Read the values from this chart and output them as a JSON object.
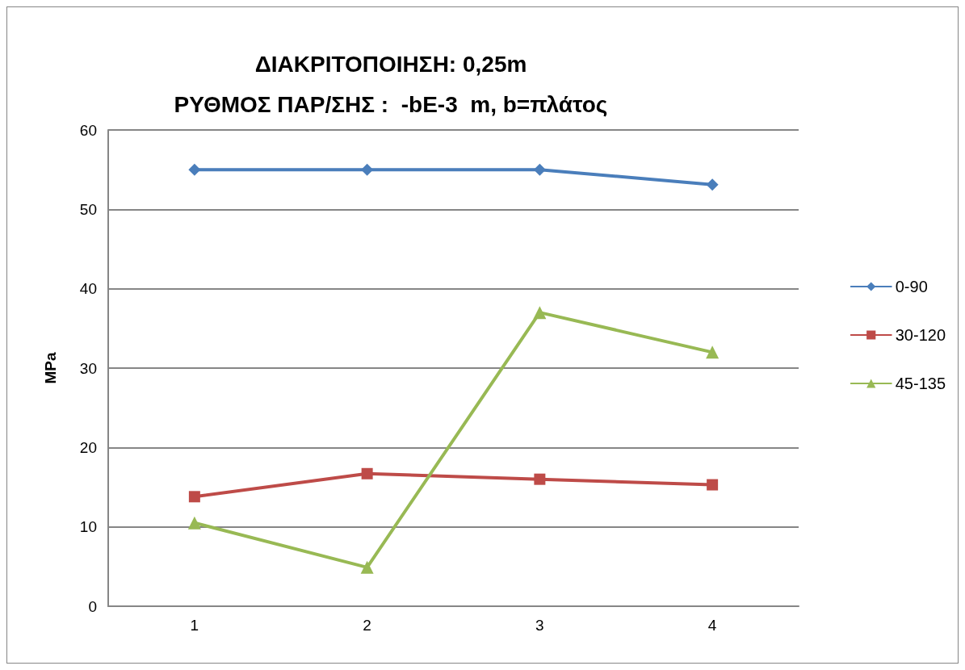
{
  "chart_data": {
    "type": "line",
    "title": "ΔΙΑΚΡΙΤΟΠΟΙΗΣΗ: 0,25m\nΡΥΘΜΟΣ ΠΑΡ/ΣΗΣ :  -bE-3  m, b=πλάτος",
    "ylabel": "MPa",
    "categories": [
      "1",
      "2",
      "3",
      "4"
    ],
    "series": [
      {
        "name": "0-90",
        "color": "#4a7ebb",
        "marker": "diamond",
        "values": [
          55,
          55,
          55,
          53.1
        ]
      },
      {
        "name": "30-120",
        "color": "#be4b48",
        "marker": "square",
        "values": [
          13.8,
          16.7,
          16.0,
          15.3
        ]
      },
      {
        "name": "45-135",
        "color": "#98b954",
        "marker": "triangle",
        "values": [
          10.5,
          4.9,
          37.0,
          32.0
        ]
      }
    ],
    "ylim": [
      0,
      60
    ],
    "yticks": [
      0,
      10,
      20,
      30,
      40,
      50,
      60
    ],
    "grid": "y",
    "legend": "right",
    "line_style": "solid"
  }
}
